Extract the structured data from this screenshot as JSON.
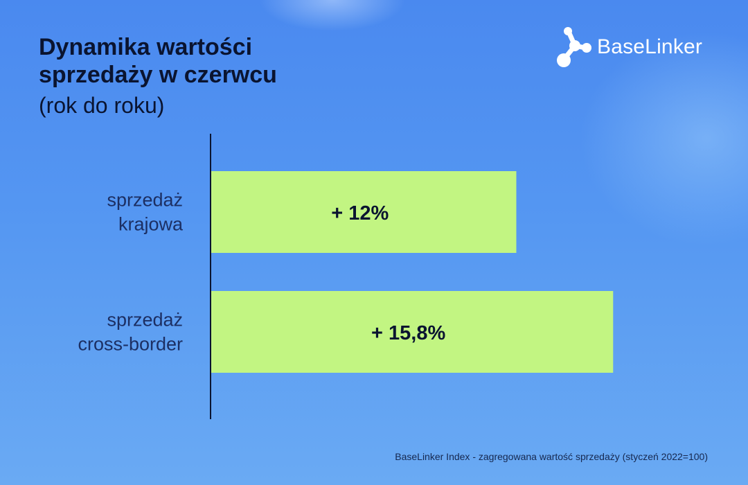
{
  "brand": {
    "name": "BaseLinker",
    "logo_icon": "molecule-icon"
  },
  "chart_data": {
    "type": "bar",
    "orientation": "horizontal",
    "title": "Dynamika wartości sprzedaży w czerwcu",
    "subtitle": "(rok do roku)",
    "categories": [
      {
        "lines": [
          "sprzedaż",
          "krajowa"
        ]
      },
      {
        "lines": [
          "sprzedaż",
          "cross-border"
        ]
      }
    ],
    "values": [
      12,
      15.8
    ],
    "data_labels": [
      "+ 12%",
      "+ 15,8%"
    ],
    "unit": "%",
    "xlim": [
      0,
      19
    ],
    "grid": false,
    "bar_color": "#c2f582",
    "axis_color": "#0a1430"
  },
  "footnote": "BaseLinker Index - zagregowana wartość sprzedaży (styczeń 2022=100)"
}
